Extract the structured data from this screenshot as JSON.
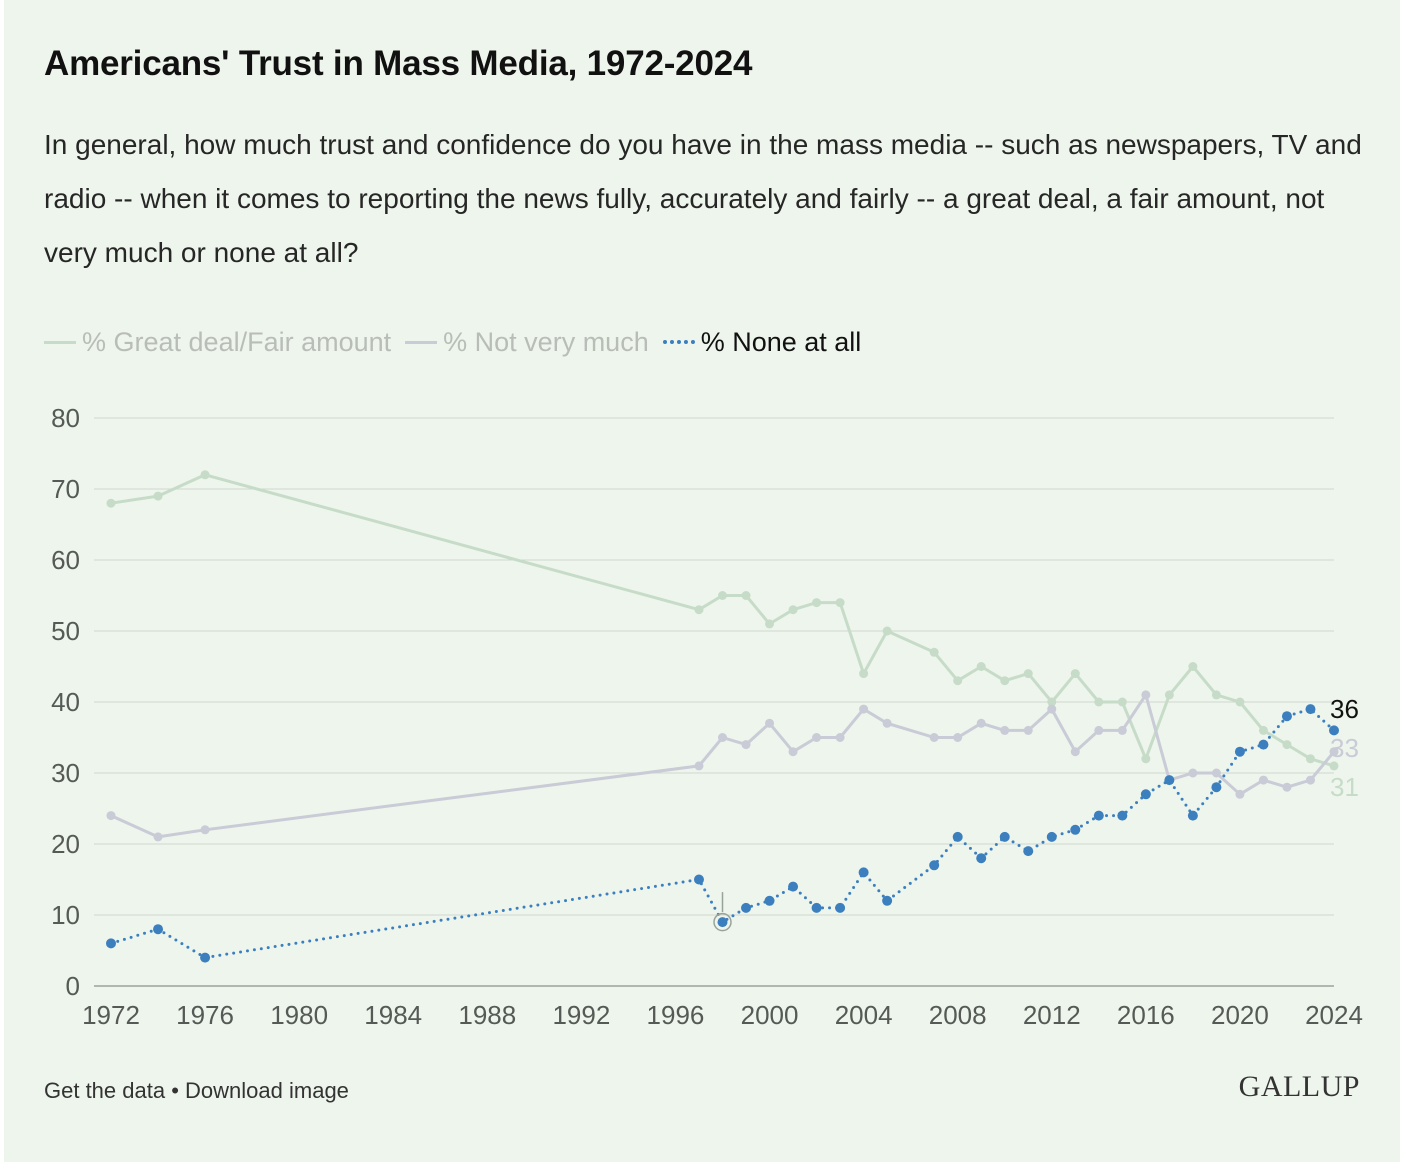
{
  "header": {
    "title": "Americans' Trust in Mass Media, 1972-2024",
    "subtitle": "In general, how much trust and confidence do you have in the mass media -- such as newspapers, TV and radio -- when it comes to reporting the news fully, accurately and fairly -- a great deal, a fair amount, not very much or none at all?"
  },
  "legend": [
    {
      "label": "% Great deal/Fair amount",
      "color": "#c6dcc8",
      "style": "solid",
      "state": "faded"
    },
    {
      "label": "% Not very much",
      "color": "#c9cbd6",
      "style": "solid",
      "state": "faded"
    },
    {
      "label": "% None at all",
      "color": "#3c7fbf",
      "style": "dotted",
      "state": "active"
    }
  ],
  "chart_data": {
    "type": "line",
    "title": "Americans' Trust in Mass Media, 1972-2024",
    "xlabel": "",
    "ylabel": "",
    "xlim": [
      1972,
      2024
    ],
    "ylim": [
      0,
      80
    ],
    "yticks": [
      0,
      10,
      20,
      30,
      40,
      50,
      60,
      70,
      80
    ],
    "xticks": [
      1972,
      1976,
      1980,
      1984,
      1988,
      1992,
      1996,
      2000,
      2004,
      2008,
      2012,
      2016,
      2020,
      2024
    ],
    "grid": true,
    "legend_position": "top-left",
    "x": [
      1972,
      1974,
      1976,
      1997,
      1998,
      1999,
      2000,
      2001,
      2002,
      2003,
      2004,
      2005,
      2007,
      2008,
      2009,
      2010,
      2011,
      2012,
      2013,
      2014,
      2015,
      2016,
      2017,
      2018,
      2019,
      2020,
      2021,
      2022,
      2023,
      2024
    ],
    "series": [
      {
        "name": "% Great deal/Fair amount",
        "color": "#c6dcc8",
        "end_label": "31",
        "values": [
          68,
          69,
          72,
          53,
          55,
          55,
          51,
          53,
          54,
          54,
          44,
          50,
          47,
          43,
          45,
          43,
          44,
          40,
          44,
          40,
          40,
          32,
          41,
          45,
          41,
          40,
          36,
          34,
          32,
          31
        ]
      },
      {
        "name": "% Not very much",
        "color": "#c9cbd6",
        "end_label": "33",
        "values": [
          24,
          21,
          22,
          31,
          35,
          34,
          37,
          33,
          35,
          35,
          39,
          37,
          35,
          35,
          37,
          36,
          36,
          39,
          33,
          36,
          36,
          41,
          29,
          30,
          30,
          27,
          29,
          28,
          29,
          33
        ]
      },
      {
        "name": "% None at all",
        "color": "#3c7fbf",
        "end_label": "36",
        "values": [
          6,
          8,
          4,
          15,
          9,
          11,
          12,
          14,
          11,
          11,
          16,
          12,
          17,
          21,
          18,
          21,
          19,
          21,
          22,
          24,
          24,
          27,
          29,
          24,
          28,
          33,
          34,
          38,
          39,
          36
        ]
      }
    ],
    "annotations": [
      {
        "series": "% None at all",
        "x": 1998,
        "y": 9,
        "type": "highlight-marker"
      }
    ]
  },
  "footer": {
    "get_data": "Get the data",
    "separator": "•",
    "download": "Download image",
    "brand": "GALLUP"
  }
}
